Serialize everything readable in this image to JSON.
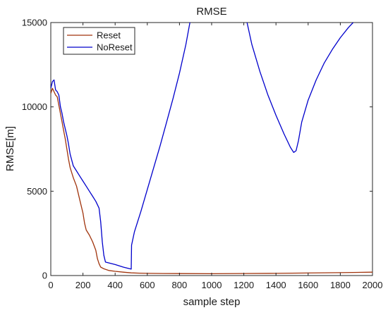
{
  "chart_data": {
    "type": "line",
    "title": "RMSE",
    "xlabel": "sample step",
    "ylabel": "RMSE[m]",
    "xlim": [
      0,
      2000
    ],
    "ylim": [
      0,
      15000
    ],
    "xticks": [
      0,
      200,
      400,
      600,
      800,
      1000,
      1200,
      1400,
      1600,
      1800,
      2000
    ],
    "yticks": [
      0,
      5000,
      10000,
      15000
    ],
    "grid": false,
    "legend_position": "top-left",
    "series": [
      {
        "name": "Reset",
        "color": "#a0330c",
        "points": [
          [
            0,
            10800
          ],
          [
            10,
            11100
          ],
          [
            20,
            10900
          ],
          [
            30,
            10700
          ],
          [
            40,
            10600
          ],
          [
            50,
            10100
          ],
          [
            60,
            9600
          ],
          [
            70,
            9100
          ],
          [
            80,
            8600
          ],
          [
            90,
            8100
          ],
          [
            100,
            7500
          ],
          [
            110,
            6900
          ],
          [
            120,
            6400
          ],
          [
            140,
            5800
          ],
          [
            160,
            5300
          ],
          [
            180,
            4500
          ],
          [
            200,
            3700
          ],
          [
            210,
            3100
          ],
          [
            220,
            2700
          ],
          [
            240,
            2400
          ],
          [
            260,
            2000
          ],
          [
            280,
            1500
          ],
          [
            290,
            1000
          ],
          [
            300,
            700
          ],
          [
            310,
            500
          ],
          [
            330,
            400
          ],
          [
            360,
            300
          ],
          [
            400,
            250
          ],
          [
            450,
            200
          ],
          [
            500,
            160
          ],
          [
            550,
            140
          ],
          [
            600,
            130
          ],
          [
            700,
            120
          ],
          [
            800,
            115
          ],
          [
            1000,
            110
          ],
          [
            1200,
            120
          ],
          [
            1400,
            130
          ],
          [
            1600,
            150
          ],
          [
            1800,
            170
          ],
          [
            2000,
            200
          ]
        ]
      },
      {
        "name": "NoReset",
        "color": "#0000cc",
        "points": [
          [
            0,
            11100
          ],
          [
            10,
            11500
          ],
          [
            20,
            11600
          ],
          [
            30,
            11000
          ],
          [
            40,
            10900
          ],
          [
            50,
            10700
          ],
          [
            60,
            10000
          ],
          [
            70,
            9600
          ],
          [
            80,
            9100
          ],
          [
            90,
            8700
          ],
          [
            100,
            8300
          ],
          [
            110,
            7800
          ],
          [
            120,
            7200
          ],
          [
            140,
            6500
          ],
          [
            160,
            6200
          ],
          [
            180,
            5900
          ],
          [
            200,
            5600
          ],
          [
            220,
            5300
          ],
          [
            240,
            5000
          ],
          [
            260,
            4700
          ],
          [
            280,
            4400
          ],
          [
            300,
            4000
          ],
          [
            310,
            3200
          ],
          [
            320,
            2000
          ],
          [
            330,
            1200
          ],
          [
            340,
            800
          ],
          [
            400,
            650
          ],
          [
            450,
            500
          ],
          [
            500,
            380
          ],
          [
            502,
            1800
          ],
          [
            520,
            2600
          ],
          [
            560,
            3800
          ],
          [
            600,
            5100
          ],
          [
            640,
            6400
          ],
          [
            680,
            7700
          ],
          [
            720,
            9100
          ],
          [
            760,
            10500
          ],
          [
            800,
            12000
          ],
          [
            840,
            13700
          ],
          [
            865,
            15000
          ]
        ]
      },
      {
        "name": "NoReset",
        "color": "#0000cc",
        "points": [
          [
            1220,
            15000
          ],
          [
            1250,
            13700
          ],
          [
            1300,
            12100
          ],
          [
            1350,
            10700
          ],
          [
            1400,
            9500
          ],
          [
            1450,
            8400
          ],
          [
            1490,
            7600
          ],
          [
            1510,
            7300
          ],
          [
            1525,
            7400
          ],
          [
            1540,
            8000
          ],
          [
            1560,
            9100
          ],
          [
            1600,
            10400
          ],
          [
            1650,
            11600
          ],
          [
            1700,
            12600
          ],
          [
            1750,
            13400
          ],
          [
            1800,
            14100
          ],
          [
            1850,
            14700
          ],
          [
            1880,
            15000
          ]
        ]
      }
    ]
  }
}
